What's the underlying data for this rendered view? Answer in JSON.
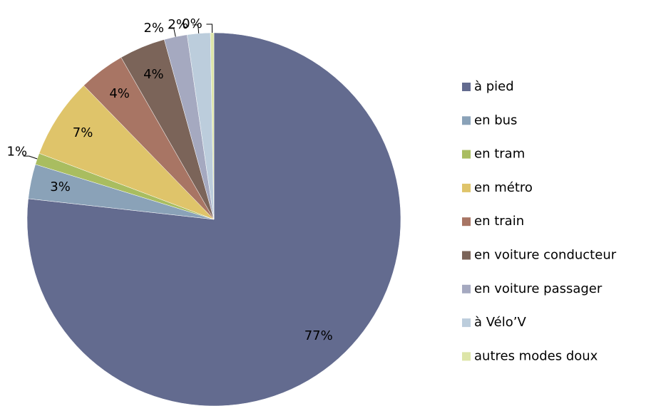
{
  "chart_data": {
    "type": "pie",
    "categories": [
      "à pied",
      "en bus",
      "en tram",
      "en métro",
      "en train",
      "en voiture conducteur",
      "en voiture passager",
      "à Vélo’V",
      "autres modes doux"
    ],
    "values": [
      77,
      3,
      1,
      7,
      4,
      4,
      2,
      2,
      0.3
    ],
    "value_labels": [
      "77%",
      "3%",
      "1%",
      "7%",
      "4%",
      "4%",
      "2%",
      "2%",
      "0%"
    ],
    "colors": [
      "#636b8f",
      "#8aa2b8",
      "#a9bd60",
      "#dfc46a",
      "#a87564",
      "#7b6459",
      "#a5a9c0",
      "#bccddc",
      "#dde5a8"
    ],
    "legend": "right"
  }
}
